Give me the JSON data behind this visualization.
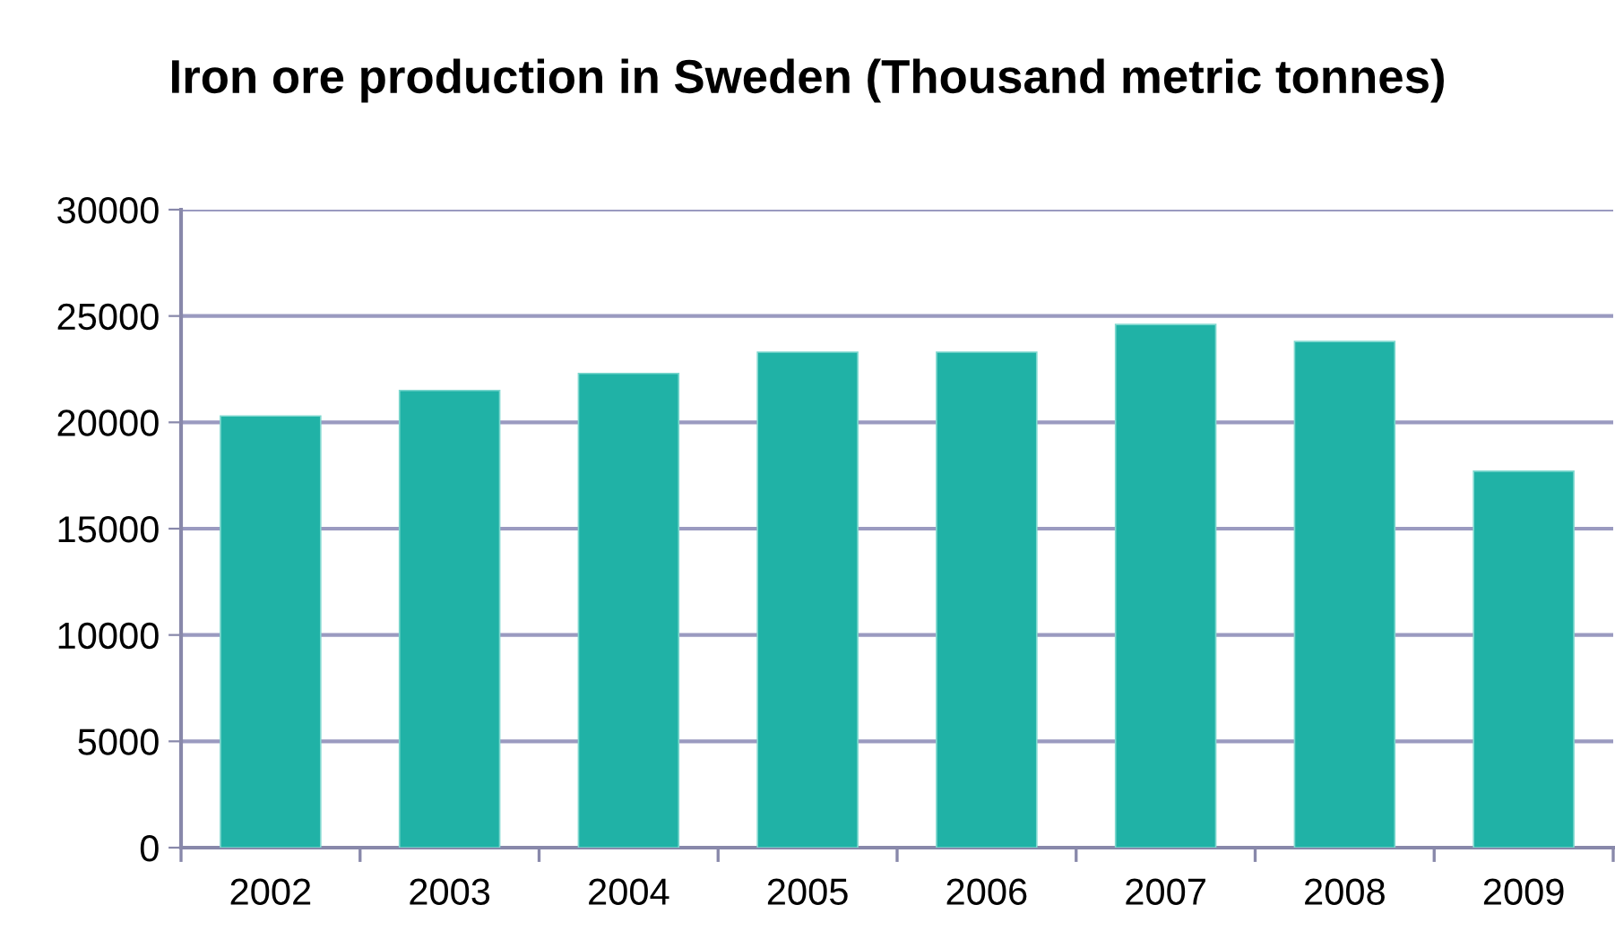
{
  "chart_data": {
    "type": "bar",
    "title": "Iron ore production in Sweden (Thousand metric tonnes)",
    "categories": [
      "2002",
      "2003",
      "2004",
      "2005",
      "2006",
      "2007",
      "2008",
      "2009"
    ],
    "values": [
      20300,
      21500,
      22300,
      23300,
      23300,
      24600,
      23800,
      17700
    ],
    "color": "#20b2a6",
    "ylim": [
      0,
      30000
    ],
    "yticks": [
      0,
      5000,
      10000,
      15000,
      20000,
      25000,
      30000
    ],
    "grid": "y"
  }
}
